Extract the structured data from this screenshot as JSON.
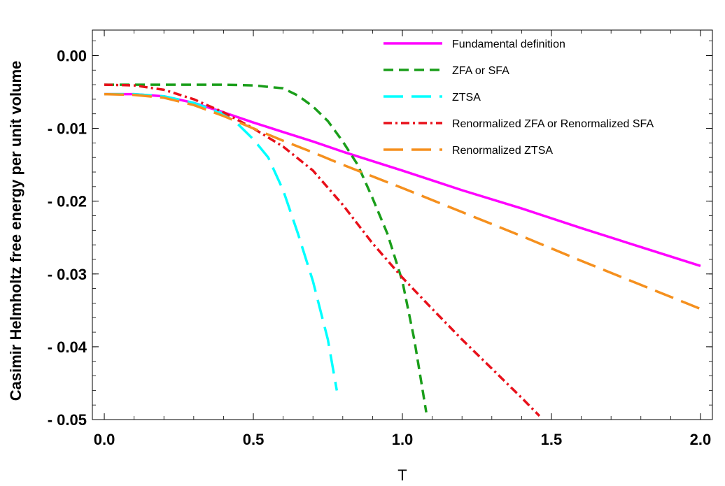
{
  "chart_data": {
    "type": "line",
    "xlabel": "T",
    "ylabel": "Casimir Helmholtz free energy per unit volume",
    "xlim": [
      -0.04,
      2.04
    ],
    "ylim": [
      -0.05,
      0.0035
    ],
    "x_ticks": [
      0,
      0.5,
      1.0,
      1.5,
      2.0
    ],
    "x_tick_labels": [
      "0.0",
      "0.5",
      "1.0",
      "1.5",
      "2.0"
    ],
    "y_ticks": [
      0,
      -0.01,
      -0.02,
      -0.03,
      -0.04,
      -0.05
    ],
    "y_tick_labels": [
      "0.00",
      "- 0.01",
      "- 0.02",
      "- 0.03",
      "- 0.04",
      "- 0.05"
    ],
    "grid": false,
    "legend_position": "top-right",
    "series": [
      {
        "name": "Fundamental definition",
        "color": "#ff00ff",
        "dash": "solid",
        "points": [
          [
            0,
            -0.0053
          ],
          [
            0.1,
            -0.0053
          ],
          [
            0.2,
            -0.0056
          ],
          [
            0.3,
            -0.0065
          ],
          [
            0.4,
            -0.0078
          ],
          [
            0.5,
            -0.0092
          ],
          [
            0.6,
            -0.0105
          ],
          [
            0.7,
            -0.0118
          ],
          [
            0.8,
            -0.0132
          ],
          [
            0.9,
            -0.0145
          ],
          [
            1.0,
            -0.0158
          ],
          [
            1.2,
            -0.0185
          ],
          [
            1.4,
            -0.021
          ],
          [
            1.6,
            -0.0237
          ],
          [
            1.8,
            -0.0263
          ],
          [
            2.0,
            -0.0289
          ]
        ]
      },
      {
        "name": "ZFA or SFA",
        "color": "#1a9e1a",
        "dash": "medium",
        "points": [
          [
            0,
            -0.004
          ],
          [
            0.2,
            -0.004
          ],
          [
            0.4,
            -0.004
          ],
          [
            0.5,
            -0.0041
          ],
          [
            0.6,
            -0.0045
          ],
          [
            0.65,
            -0.0055
          ],
          [
            0.7,
            -0.007
          ],
          [
            0.75,
            -0.009
          ],
          [
            0.8,
            -0.0118
          ],
          [
            0.85,
            -0.015
          ],
          [
            0.9,
            -0.0196
          ],
          [
            0.95,
            -0.0245
          ],
          [
            1.0,
            -0.031
          ],
          [
            1.04,
            -0.039
          ],
          [
            1.08,
            -0.049
          ]
        ]
      },
      {
        "name": "ZTSA",
        "color": "#00ffff",
        "dash": "long",
        "points": [
          [
            0,
            -0.0053
          ],
          [
            0.1,
            -0.0053
          ],
          [
            0.2,
            -0.0056
          ],
          [
            0.3,
            -0.0065
          ],
          [
            0.4,
            -0.008
          ],
          [
            0.45,
            -0.0095
          ],
          [
            0.5,
            -0.0115
          ],
          [
            0.55,
            -0.014
          ],
          [
            0.6,
            -0.0185
          ],
          [
            0.65,
            -0.0245
          ],
          [
            0.7,
            -0.031
          ],
          [
            0.75,
            -0.039
          ],
          [
            0.78,
            -0.046
          ]
        ]
      },
      {
        "name": "Renormalized ZFA or Renormalized SFA",
        "color": "#e8101a",
        "dash": "dashdot",
        "points": [
          [
            0,
            -0.004
          ],
          [
            0.1,
            -0.0041
          ],
          [
            0.2,
            -0.0047
          ],
          [
            0.3,
            -0.006
          ],
          [
            0.4,
            -0.0078
          ],
          [
            0.5,
            -0.01
          ],
          [
            0.6,
            -0.0125
          ],
          [
            0.7,
            -0.0158
          ],
          [
            0.8,
            -0.0205
          ],
          [
            0.9,
            -0.0258
          ],
          [
            1.0,
            -0.0305
          ],
          [
            1.1,
            -0.0348
          ],
          [
            1.2,
            -0.039
          ],
          [
            1.3,
            -0.043
          ],
          [
            1.4,
            -0.047
          ],
          [
            1.46,
            -0.0495
          ]
        ]
      },
      {
        "name": "Renormalized ZTSA",
        "color": "#f5901e",
        "dash": "long",
        "points": [
          [
            0,
            -0.0053
          ],
          [
            0.1,
            -0.0054
          ],
          [
            0.2,
            -0.0058
          ],
          [
            0.3,
            -0.0068
          ],
          [
            0.4,
            -0.0083
          ],
          [
            0.5,
            -0.01
          ],
          [
            0.6,
            -0.0117
          ],
          [
            0.7,
            -0.0133
          ],
          [
            0.8,
            -0.015
          ],
          [
            0.9,
            -0.0166
          ],
          [
            1.0,
            -0.0182
          ],
          [
            1.2,
            -0.0215
          ],
          [
            1.4,
            -0.0248
          ],
          [
            1.6,
            -0.0282
          ],
          [
            1.8,
            -0.0315
          ],
          [
            2.0,
            -0.0348
          ]
        ]
      }
    ]
  }
}
